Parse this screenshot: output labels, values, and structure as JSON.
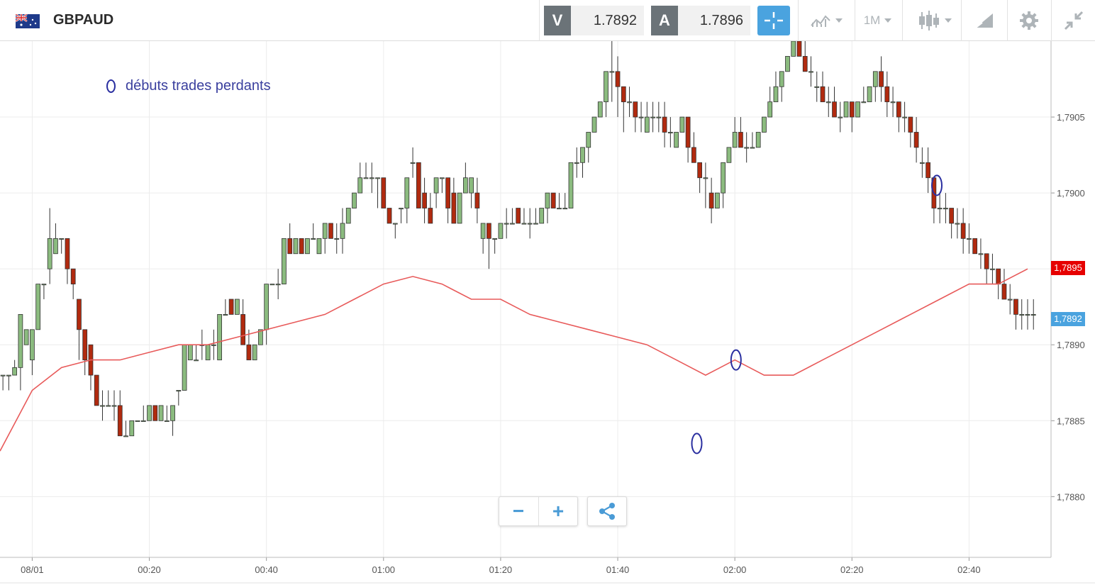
{
  "header": {
    "symbol": "GBPAUD",
    "sell_label": "V",
    "sell_price": "1.7892",
    "buy_label": "A",
    "buy_price": "1.7896",
    "timeframe": "1M",
    "icons": [
      "crosshair-icon",
      "indicators-icon",
      "timeframe-dropdown",
      "candle-type-icon",
      "drawing-tools-icon",
      "gear-icon",
      "collapse-icon"
    ]
  },
  "legend": {
    "text": "débuts trades perdants",
    "marker_color": "#2a2fa0"
  },
  "price_tags": {
    "ma_value": "1,7895",
    "ma_color": "#e60000",
    "last_value": "1,7892",
    "last_color": "#4aa3df"
  },
  "zoom": {
    "minus": "−",
    "plus": "+",
    "share_icon": "share-icon"
  },
  "chart_data": {
    "type": "candlestick",
    "title": "",
    "colors": {
      "up": "#8bbb7f",
      "down": "#b12a0f",
      "ma": "#e85a5a",
      "grid": "#ececec"
    },
    "ylim": [
      1.7876,
      1.791
    ],
    "yticks": [
      "1,7880",
      "1,7885",
      "1,7890",
      "1,7895",
      "1,7900",
      "1,7905"
    ],
    "ytick_values": [
      1.788,
      1.7885,
      1.789,
      1.7895,
      1.79,
      1.7905
    ],
    "xticks": [
      "08/01",
      "00:20",
      "00:40",
      "01:00",
      "01:20",
      "01:40",
      "02:00",
      "02:20",
      "02:40"
    ],
    "xtick_minutes": [
      0,
      20,
      40,
      60,
      80,
      100,
      120,
      140,
      160
    ],
    "xlim_minutes": [
      -5.5,
      174
    ],
    "candles": [
      [
        -5,
        1.7888,
        1.7888,
        1.7888,
        1.7887
      ],
      [
        -4,
        1.7888,
        1.7888,
        1.7888,
        1.7887
      ],
      [
        -3,
        1.7888,
        1.7889,
        1.78885,
        1.7888
      ],
      [
        -2,
        1.78885,
        1.7892,
        1.7892,
        1.7887
      ],
      [
        -1,
        1.789,
        1.7891,
        1.7891,
        1.789
      ],
      [
        0,
        1.7889,
        1.7891,
        1.7891,
        1.7888
      ],
      [
        1,
        1.7891,
        1.7894,
        1.7894,
        1.7891
      ],
      [
        2,
        1.7894,
        1.7894,
        1.7894,
        1.7893
      ],
      [
        3,
        1.7895,
        1.7899,
        1.7897,
        1.7894
      ],
      [
        4,
        1.7896,
        1.7898,
        1.7897,
        1.7896
      ],
      [
        5,
        1.7897,
        1.7897,
        1.7897,
        1.7896
      ],
      [
        6,
        1.7897,
        1.7897,
        1.7895,
        1.7894
      ],
      [
        7,
        1.7895,
        1.7895,
        1.7894,
        1.7893
      ],
      [
        8,
        1.7893,
        1.7893,
        1.7891,
        1.7889
      ],
      [
        9,
        1.7891,
        1.7891,
        1.7889,
        1.7888
      ],
      [
        10,
        1.789,
        1.789,
        1.7888,
        1.7887
      ],
      [
        11,
        1.7888,
        1.7888,
        1.7886,
        1.7886
      ],
      [
        12,
        1.7886,
        1.7887,
        1.7886,
        1.7885
      ],
      [
        13,
        1.7886,
        1.7887,
        1.7886,
        1.7886
      ],
      [
        14,
        1.7886,
        1.7887,
        1.7886,
        1.7885
      ],
      [
        15,
        1.7886,
        1.7887,
        1.7884,
        1.7884
      ],
      [
        16,
        1.7884,
        1.7885,
        1.7884,
        1.7884
      ],
      [
        17,
        1.7884,
        1.7885,
        1.7885,
        1.7884
      ],
      [
        18,
        1.7885,
        1.7885,
        1.7885,
        1.7885
      ],
      [
        19,
        1.7885,
        1.7886,
        1.7885,
        1.7885
      ],
      [
        20,
        1.7885,
        1.7886,
        1.7886,
        1.7885
      ],
      [
        21,
        1.7886,
        1.7886,
        1.7885,
        1.7885
      ],
      [
        22,
        1.7885,
        1.7886,
        1.7886,
        1.7885
      ],
      [
        23,
        1.7885,
        1.7886,
        1.7885,
        1.7885
      ],
      [
        24,
        1.7885,
        1.7886,
        1.7886,
        1.7884
      ],
      [
        25,
        1.7887,
        1.7887,
        1.7887,
        1.7886
      ],
      [
        26,
        1.7887,
        1.789,
        1.789,
        1.7887
      ],
      [
        27,
        1.7889,
        1.789,
        1.789,
        1.7889
      ],
      [
        28,
        1.7889,
        1.789,
        1.7889,
        1.7889
      ],
      [
        29,
        1.789,
        1.7891,
        1.789,
        1.7889
      ],
      [
        30,
        1.7889,
        1.789,
        1.789,
        1.7889
      ],
      [
        31,
        1.789,
        1.7891,
        1.789,
        1.7889
      ],
      [
        32,
        1.7889,
        1.7892,
        1.7892,
        1.7889
      ],
      [
        33,
        1.7892,
        1.7893,
        1.7892,
        1.7892
      ],
      [
        34,
        1.7893,
        1.7893,
        1.7892,
        1.7892
      ],
      [
        35,
        1.7892,
        1.7893,
        1.7893,
        1.7892
      ],
      [
        36,
        1.7892,
        1.7893,
        1.789,
        1.789
      ],
      [
        37,
        1.789,
        1.7891,
        1.7889,
        1.7889
      ],
      [
        38,
        1.7889,
        1.789,
        1.789,
        1.7889
      ],
      [
        39,
        1.789,
        1.7891,
        1.7891,
        1.789
      ],
      [
        40,
        1.7891,
        1.7894,
        1.7894,
        1.789
      ],
      [
        41,
        1.7894,
        1.7894,
        1.7894,
        1.7894
      ],
      [
        42,
        1.7894,
        1.7895,
        1.7894,
        1.7893
      ],
      [
        43,
        1.7894,
        1.7897,
        1.7897,
        1.7894
      ],
      [
        44,
        1.7897,
        1.7898,
        1.7896,
        1.7896
      ],
      [
        45,
        1.7896,
        1.7897,
        1.7897,
        1.7896
      ],
      [
        46,
        1.7897,
        1.7897,
        1.7896,
        1.7896
      ],
      [
        47,
        1.7896,
        1.7897,
        1.7897,
        1.7896
      ],
      [
        48,
        1.7897,
        1.7898,
        1.7897,
        1.7897
      ],
      [
        49,
        1.7896,
        1.7897,
        1.7897,
        1.7896
      ],
      [
        50,
        1.7897,
        1.7898,
        1.7898,
        1.7896
      ],
      [
        51,
        1.7898,
        1.7898,
        1.7897,
        1.7897
      ],
      [
        52,
        1.7897,
        1.7898,
        1.7897,
        1.7896
      ],
      [
        53,
        1.7897,
        1.7899,
        1.7898,
        1.7896
      ],
      [
        54,
        1.7898,
        1.7899,
        1.7899,
        1.7898
      ],
      [
        55,
        1.7899,
        1.79,
        1.79,
        1.7899
      ],
      [
        56,
        1.79,
        1.7902,
        1.7901,
        1.79
      ],
      [
        57,
        1.7901,
        1.7902,
        1.7901,
        1.7901
      ],
      [
        58,
        1.7901,
        1.7902,
        1.7901,
        1.79
      ],
      [
        59,
        1.7901,
        1.7901,
        1.7901,
        1.7899
      ],
      [
        60,
        1.7901,
        1.7901,
        1.7899,
        1.7899
      ],
      [
        61,
        1.7899,
        1.7899,
        1.7898,
        1.7898
      ],
      [
        62,
        1.7898,
        1.7898,
        1.7898,
        1.7897
      ],
      [
        63,
        1.7899,
        1.7899,
        1.7899,
        1.7898
      ],
      [
        64,
        1.7899,
        1.7901,
        1.7901,
        1.7898
      ],
      [
        65,
        1.7902,
        1.7903,
        1.7902,
        1.7901
      ],
      [
        66,
        1.7902,
        1.7902,
        1.7899,
        1.7899
      ],
      [
        67,
        1.79,
        1.7901,
        1.7899,
        1.7898
      ],
      [
        68,
        1.7899,
        1.79,
        1.7898,
        1.7898
      ],
      [
        69,
        1.79,
        1.7901,
        1.7901,
        1.7899
      ],
      [
        70,
        1.7901,
        1.7901,
        1.7901,
        1.79
      ],
      [
        71,
        1.7901,
        1.7901,
        1.7899,
        1.7898
      ],
      [
        72,
        1.79,
        1.7901,
        1.7898,
        1.7898
      ],
      [
        73,
        1.7898,
        1.79,
        1.79,
        1.7898
      ],
      [
        74,
        1.79,
        1.7902,
        1.7901,
        1.79
      ],
      [
        75,
        1.79,
        1.7901,
        1.7901,
        1.7899
      ],
      [
        76,
        1.79,
        1.7901,
        1.7899,
        1.7898
      ],
      [
        77,
        1.7897,
        1.7898,
        1.7898,
        1.7896
      ],
      [
        78,
        1.7898,
        1.7898,
        1.7897,
        1.7895
      ],
      [
        79,
        1.7897,
        1.7897,
        1.7897,
        1.7896
      ],
      [
        80,
        1.7897,
        1.7898,
        1.7898,
        1.7897
      ],
      [
        81,
        1.7898,
        1.7899,
        1.7898,
        1.7897
      ],
      [
        82,
        1.7898,
        1.7899,
        1.7898,
        1.7898
      ],
      [
        83,
        1.7899,
        1.7899,
        1.7898,
        1.7898
      ],
      [
        84,
        1.7898,
        1.7899,
        1.7898,
        1.7898
      ],
      [
        85,
        1.7898,
        1.7899,
        1.7898,
        1.7897
      ],
      [
        86,
        1.7898,
        1.7899,
        1.7898,
        1.7898
      ],
      [
        87,
        1.7898,
        1.7899,
        1.7899,
        1.7898
      ],
      [
        88,
        1.7899,
        1.79,
        1.79,
        1.7898
      ],
      [
        89,
        1.79,
        1.79,
        1.7899,
        1.7899
      ],
      [
        90,
        1.7899,
        1.79,
        1.7899,
        1.7899
      ],
      [
        91,
        1.7899,
        1.79,
        1.7899,
        1.7899
      ],
      [
        92,
        1.7899,
        1.7902,
        1.7902,
        1.7899
      ],
      [
        93,
        1.7902,
        1.7903,
        1.7902,
        1.7901
      ],
      [
        94,
        1.7902,
        1.7903,
        1.7903,
        1.7901
      ],
      [
        95,
        1.7903,
        1.7904,
        1.7904,
        1.7902
      ],
      [
        96,
        1.7904,
        1.7905,
        1.7905,
        1.7904
      ],
      [
        97,
        1.7905,
        1.7906,
        1.7906,
        1.7905
      ],
      [
        98,
        1.7906,
        1.7908,
        1.7908,
        1.7905
      ],
      [
        99,
        1.7908,
        1.791,
        1.7908,
        1.7906
      ],
      [
        100,
        1.7908,
        1.7909,
        1.7907,
        1.7905
      ],
      [
        101,
        1.7907,
        1.7907,
        1.7906,
        1.7904
      ],
      [
        102,
        1.7906,
        1.7907,
        1.7906,
        1.7905
      ],
      [
        103,
        1.7906,
        1.7906,
        1.7905,
        1.7904
      ],
      [
        104,
        1.7905,
        1.7906,
        1.7905,
        1.7904
      ],
      [
        105,
        1.7904,
        1.7906,
        1.7905,
        1.7904
      ],
      [
        106,
        1.7905,
        1.7906,
        1.7905,
        1.7904
      ],
      [
        107,
        1.7905,
        1.7906,
        1.7905,
        1.7904
      ],
      [
        108,
        1.7905,
        1.7906,
        1.7904,
        1.7903
      ],
      [
        109,
        1.7904,
        1.7905,
        1.7904,
        1.7903
      ],
      [
        110,
        1.7903,
        1.7904,
        1.7904,
        1.7903
      ],
      [
        111,
        1.7904,
        1.7905,
        1.7905,
        1.7904
      ],
      [
        112,
        1.7905,
        1.7905,
        1.7903,
        1.7902
      ],
      [
        113,
        1.7903,
        1.7904,
        1.7902,
        1.7902
      ],
      [
        114,
        1.7902,
        1.7902,
        1.7901,
        1.79
      ],
      [
        115,
        1.7901,
        1.7902,
        1.7901,
        1.7899
      ],
      [
        116,
        1.79,
        1.7901,
        1.7899,
        1.7898
      ],
      [
        117,
        1.7899,
        1.79,
        1.79,
        1.7899
      ],
      [
        118,
        1.79,
        1.7902,
        1.7902,
        1.7899
      ],
      [
        119,
        1.7902,
        1.7903,
        1.7903,
        1.7902
      ],
      [
        120,
        1.7903,
        1.7905,
        1.7904,
        1.7903
      ],
      [
        121,
        1.7904,
        1.7905,
        1.7903,
        1.7903
      ],
      [
        122,
        1.7903,
        1.7904,
        1.7903,
        1.7902
      ],
      [
        123,
        1.7903,
        1.7904,
        1.7903,
        1.7903
      ],
      [
        124,
        1.7903,
        1.7904,
        1.7904,
        1.7903
      ],
      [
        125,
        1.7904,
        1.7905,
        1.7905,
        1.7904
      ],
      [
        126,
        1.7905,
        1.7907,
        1.7906,
        1.7905
      ],
      [
        127,
        1.7906,
        1.7908,
        1.7907,
        1.7906
      ],
      [
        128,
        1.7907,
        1.7908,
        1.7908,
        1.7906
      ],
      [
        129,
        1.7908,
        1.7909,
        1.7909,
        1.7908
      ],
      [
        130,
        1.7909,
        1.791,
        1.791,
        1.7909
      ],
      [
        131,
        1.791,
        1.791,
        1.7909,
        1.7909
      ],
      [
        132,
        1.7909,
        1.791,
        1.7908,
        1.7908
      ],
      [
        133,
        1.7908,
        1.7909,
        1.7908,
        1.7907
      ],
      [
        134,
        1.7907,
        1.7908,
        1.7907,
        1.7906
      ],
      [
        135,
        1.7907,
        1.7908,
        1.7906,
        1.7906
      ],
      [
        136,
        1.7906,
        1.7907,
        1.7906,
        1.7905
      ],
      [
        137,
        1.7906,
        1.7907,
        1.7905,
        1.7905
      ],
      [
        138,
        1.7905,
        1.7906,
        1.7905,
        1.7904
      ],
      [
        139,
        1.7905,
        1.7906,
        1.7906,
        1.7905
      ],
      [
        140,
        1.7906,
        1.7906,
        1.7905,
        1.7904
      ],
      [
        141,
        1.7905,
        1.7906,
        1.7906,
        1.7905
      ],
      [
        142,
        1.7906,
        1.7907,
        1.7906,
        1.7906
      ],
      [
        143,
        1.7906,
        1.7907,
        1.7907,
        1.7906
      ],
      [
        144,
        1.7907,
        1.7908,
        1.7908,
        1.7906
      ],
      [
        145,
        1.7908,
        1.7909,
        1.7907,
        1.7906
      ],
      [
        146,
        1.7907,
        1.7908,
        1.7906,
        1.7905
      ],
      [
        147,
        1.7906,
        1.7907,
        1.7906,
        1.7905
      ],
      [
        148,
        1.7906,
        1.7906,
        1.7905,
        1.7904
      ],
      [
        149,
        1.7905,
        1.7906,
        1.7905,
        1.7904
      ],
      [
        150,
        1.7905,
        1.7905,
        1.7904,
        1.7903
      ],
      [
        151,
        1.7904,
        1.7905,
        1.7903,
        1.7902
      ],
      [
        152,
        1.7902,
        1.7903,
        1.7902,
        1.7901
      ],
      [
        153,
        1.7902,
        1.7903,
        1.7901,
        1.79
      ],
      [
        154,
        1.7901,
        1.7901,
        1.7899,
        1.7898
      ],
      [
        155,
        1.7899,
        1.79,
        1.7899,
        1.7898
      ],
      [
        156,
        1.7899,
        1.79,
        1.7899,
        1.7898
      ],
      [
        157,
        1.7899,
        1.7899,
        1.7898,
        1.7897
      ],
      [
        158,
        1.7898,
        1.7899,
        1.7898,
        1.7897
      ],
      [
        159,
        1.7898,
        1.7899,
        1.7897,
        1.7896
      ],
      [
        160,
        1.7897,
        1.7898,
        1.7897,
        1.7896
      ],
      [
        161,
        1.7897,
        1.7897,
        1.7896,
        1.7896
      ],
      [
        162,
        1.7896,
        1.7897,
        1.7896,
        1.7895
      ],
      [
        163,
        1.7896,
        1.7896,
        1.7895,
        1.7894
      ],
      [
        164,
        1.7895,
        1.7896,
        1.7895,
        1.7894
      ],
      [
        165,
        1.7895,
        1.7895,
        1.7894,
        1.7893
      ],
      [
        166,
        1.7894,
        1.7895,
        1.7893,
        1.7893
      ],
      [
        167,
        1.7893,
        1.7894,
        1.7893,
        1.7892
      ],
      [
        168,
        1.7893,
        1.7893,
        1.7892,
        1.7891
      ],
      [
        169,
        1.7892,
        1.7893,
        1.7892,
        1.7891
      ],
      [
        170,
        1.7892,
        1.7893,
        1.7892,
        1.7891
      ],
      [
        171,
        1.7892,
        1.7893,
        1.7892,
        1.7891
      ]
    ],
    "moving_average": [
      [
        -5.5,
        1.7883
      ],
      [
        0,
        1.7887
      ],
      [
        5,
        1.78885
      ],
      [
        10,
        1.7889
      ],
      [
        15,
        1.7889
      ],
      [
        20,
        1.78895
      ],
      [
        25,
        1.789
      ],
      [
        30,
        1.789
      ],
      [
        35,
        1.78905
      ],
      [
        40,
        1.7891
      ],
      [
        45,
        1.78915
      ],
      [
        50,
        1.7892
      ],
      [
        55,
        1.7893
      ],
      [
        60,
        1.7894
      ],
      [
        65,
        1.78945
      ],
      [
        70,
        1.7894
      ],
      [
        75,
        1.7893
      ],
      [
        80,
        1.7893
      ],
      [
        85,
        1.7892
      ],
      [
        90,
        1.78915
      ],
      [
        95,
        1.7891
      ],
      [
        100,
        1.78905
      ],
      [
        105,
        1.789
      ],
      [
        110,
        1.7889
      ],
      [
        115,
        1.7888
      ],
      [
        120,
        1.7889
      ],
      [
        125,
        1.7888
      ],
      [
        130,
        1.7888
      ],
      [
        135,
        1.7889
      ],
      [
        140,
        1.789
      ],
      [
        145,
        1.7891
      ],
      [
        150,
        1.7892
      ],
      [
        155,
        1.7893
      ],
      [
        160,
        1.7894
      ],
      [
        165,
        1.7894
      ],
      [
        170,
        1.7895
      ]
    ],
    "markers": [
      {
        "minute": 113.5,
        "price": 1.78835,
        "color": "#2a2fa0"
      },
      {
        "minute": 120.2,
        "price": 1.7889,
        "color": "#2a2fa0"
      },
      {
        "minute": 154.5,
        "price": 1.79005,
        "color": "#2a2fa0"
      }
    ]
  }
}
